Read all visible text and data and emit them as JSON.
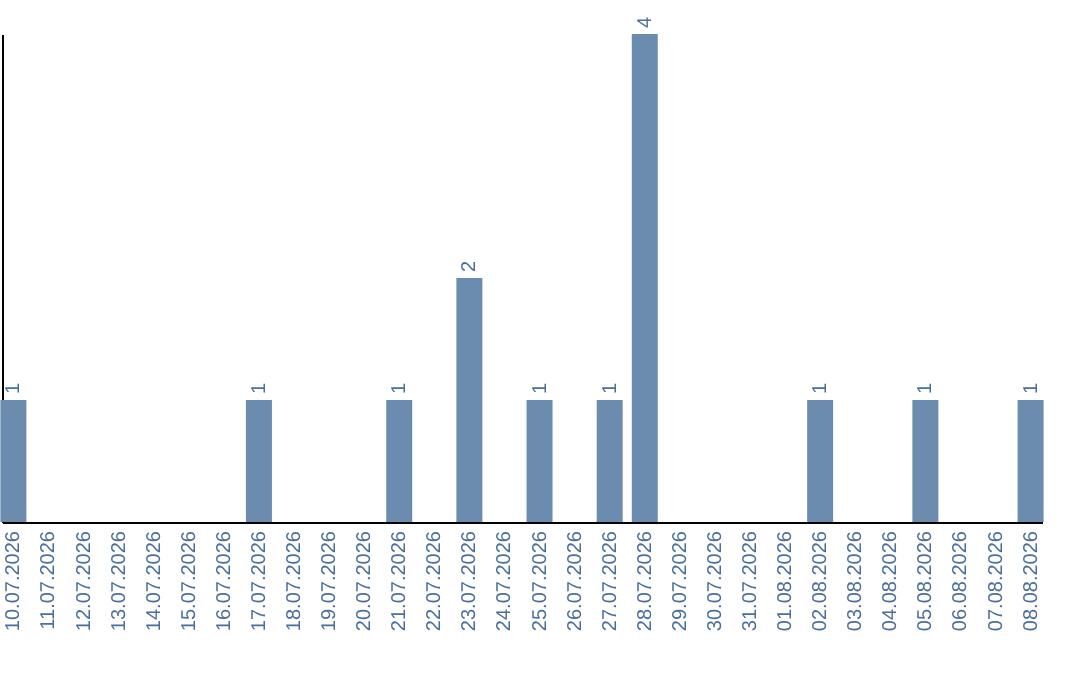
{
  "chart_data": {
    "type": "bar",
    "categories": [
      "10.07.2026",
      "11.07.2026",
      "12.07.2026",
      "13.07.2026",
      "14.07.2026",
      "15.07.2026",
      "16.07.2026",
      "17.07.2026",
      "18.07.2026",
      "19.07.2026",
      "20.07.2026",
      "21.07.2026",
      "22.07.2026",
      "23.07.2026",
      "24.07.2026",
      "25.07.2026",
      "26.07.2026",
      "27.07.2026",
      "28.07.2026",
      "29.07.2026",
      "30.07.2026",
      "31.07.2026",
      "01.08.2026",
      "02.08.2026",
      "03.08.2026",
      "04.08.2026",
      "05.08.2026",
      "06.08.2026",
      "07.08.2026",
      "08.08.2026"
    ],
    "values": [
      1,
      0,
      0,
      0,
      0,
      0,
      0,
      1,
      0,
      0,
      0,
      1,
      0,
      2,
      0,
      1,
      0,
      1,
      4,
      0,
      0,
      0,
      0,
      1,
      0,
      0,
      1,
      0,
      0,
      1
    ],
    "value_labels": [
      "1",
      null,
      null,
      null,
      null,
      null,
      null,
      "1",
      null,
      null,
      null,
      "1",
      null,
      "2",
      null,
      "1",
      null,
      "1",
      "4",
      null,
      null,
      null,
      null,
      "1",
      null,
      null,
      "1",
      null,
      null,
      "1"
    ],
    "color": "#6b8cae",
    "tick_labels": "x",
    "grid": false
  }
}
